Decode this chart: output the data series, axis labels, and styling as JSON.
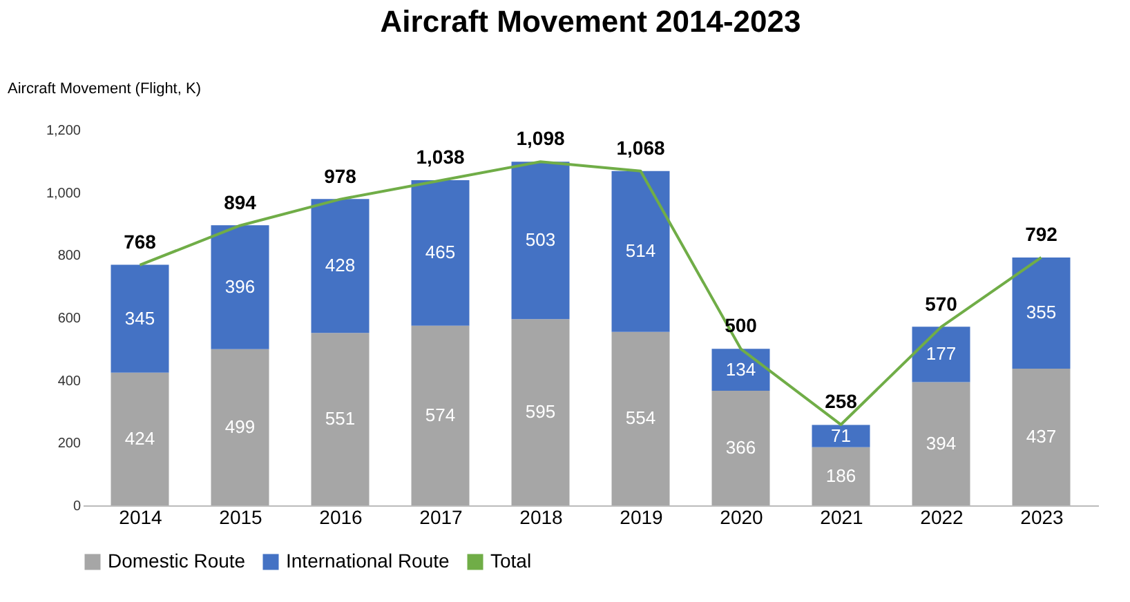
{
  "chart_data": {
    "type": "bar",
    "title": "Aircraft Movement 2014-2023",
    "ylabel": "Aircraft Movement (Flight, K)",
    "categories": [
      "2014",
      "2015",
      "2016",
      "2017",
      "2018",
      "2019",
      "2020",
      "2021",
      "2022",
      "2023"
    ],
    "stacked": true,
    "ylim": [
      0,
      1200
    ],
    "yticks": [
      0,
      200,
      400,
      600,
      800,
      {
        "value": 1000,
        "label": "1,000"
      },
      {
        "value": 1200,
        "label": "1,200"
      }
    ],
    "grid": false,
    "legend": "bottom",
    "series": [
      {
        "name": "Domestic Route",
        "color": "#a6a6a6",
        "values": [
          424,
          499,
          551,
          574,
          595,
          554,
          366,
          186,
          394,
          437
        ],
        "value_labels": [
          "424",
          "499",
          "551",
          "574",
          "595",
          "554",
          "366",
          "186",
          "394",
          "437"
        ]
      },
      {
        "name": "International Route",
        "color": "#4472c4",
        "values": [
          345,
          396,
          428,
          465,
          503,
          514,
          134,
          71,
          177,
          355
        ],
        "value_labels": [
          "345",
          "396",
          "428",
          "465",
          "503",
          "514",
          "134",
          "71",
          "177",
          "355"
        ]
      },
      {
        "name": "Total",
        "type": "line",
        "color": "#70ad47",
        "values": [
          768,
          894,
          978,
          1038,
          1098,
          1068,
          500,
          258,
          570,
          792
        ],
        "value_labels": [
          "768",
          "894",
          "978",
          "1,038",
          "1,098",
          "1,068",
          "500",
          "258",
          "570",
          "792"
        ]
      }
    ]
  }
}
